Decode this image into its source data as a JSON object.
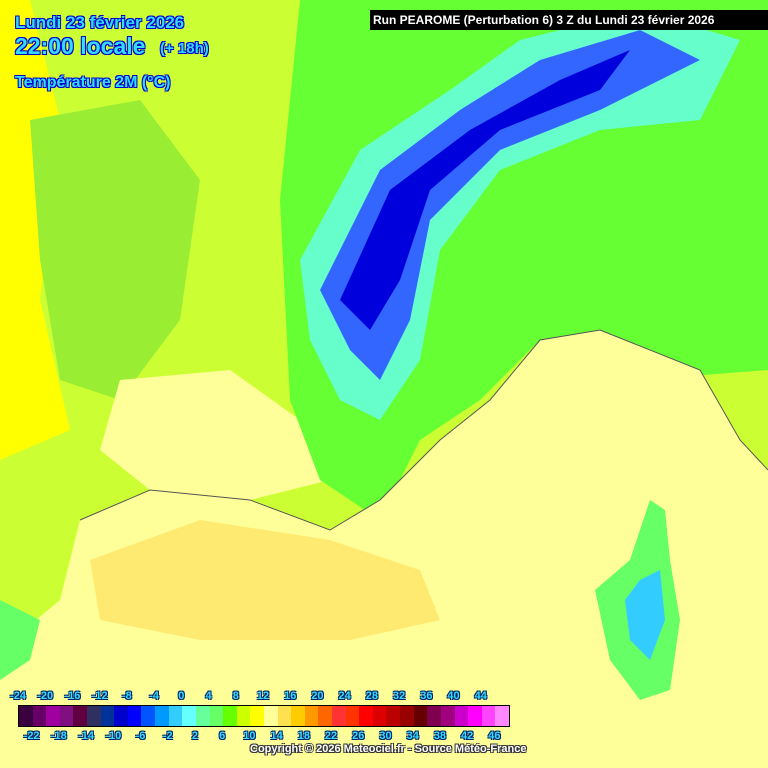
{
  "header": {
    "date": "Lundi 23 février 2026",
    "time": "22:00 locale",
    "lead": "(+ 18h)",
    "parameter": "Température 2M (°C)",
    "run": "Run PEAROME (Perturbation 6) 3 Z du Lundi 23 février 2026"
  },
  "legend": {
    "unit": "°C",
    "top_labels": [
      "-24",
      "-20",
      "-16",
      "-12",
      "-8",
      "-4",
      "0",
      "4",
      "8",
      "12",
      "16",
      "20",
      "24",
      "28",
      "32",
      "36",
      "40",
      "44"
    ],
    "bottom_labels": [
      "-22",
      "-18",
      "-14",
      "-10",
      "-6",
      "-2",
      "2",
      "6",
      "10",
      "14",
      "18",
      "22",
      "26",
      "30",
      "34",
      "38",
      "42",
      "46"
    ],
    "colors": [
      "#3a0040",
      "#660066",
      "#a000a0",
      "#801080",
      "#600040",
      "#303060",
      "#003399",
      "#0000cc",
      "#0000ff",
      "#0055ff",
      "#0099ff",
      "#33ccff",
      "#66ffff",
      "#66ff99",
      "#66ff66",
      "#66ff00",
      "#ccff00",
      "#ffff00",
      "#ffff99",
      "#ffe050",
      "#ffcc00",
      "#ff9900",
      "#ff6600",
      "#ff3333",
      "#ff3300",
      "#ff0000",
      "#dd0000",
      "#bb0000",
      "#990000",
      "#660000",
      "#800050",
      "#a00080",
      "#cc00cc",
      "#ff00ff",
      "#ff44ff",
      "#ff88ff"
    ]
  },
  "copyright": "Copyright © 2026 Meteociel.fr - Source Météo-France"
}
